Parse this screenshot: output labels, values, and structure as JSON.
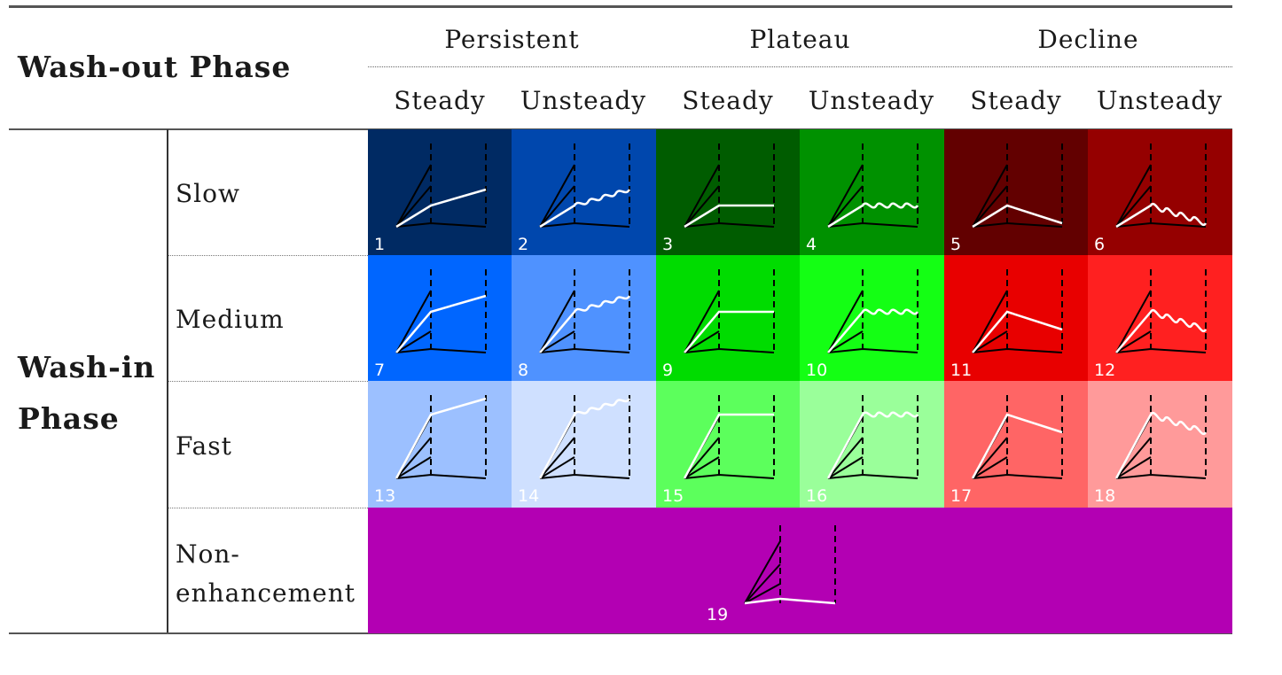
{
  "header": {
    "washout_title": "Wash-out Phase",
    "groups": [
      "Persistent",
      "Plateau",
      "Decline"
    ],
    "subgroups": [
      "Steady",
      "Unsteady",
      "Steady",
      "Unsteady",
      "Steady",
      "Unsteady"
    ]
  },
  "side": {
    "washin_title_line1": "Wash-in",
    "washin_title_line2": "Phase",
    "rows": [
      "Slow",
      "Medium",
      "Fast"
    ],
    "nonenh_line1": "Non-",
    "nonenh_line2": "enhancement"
  },
  "cells": [
    {
      "num": "1",
      "color": "#002a63",
      "rise": "slow",
      "wash": "persistent",
      "wavy": false
    },
    {
      "num": "2",
      "color": "#0047ad",
      "rise": "slow",
      "wash": "persistent",
      "wavy": true
    },
    {
      "num": "3",
      "color": "#005c00",
      "rise": "slow",
      "wash": "plateau",
      "wavy": false
    },
    {
      "num": "4",
      "color": "#009100",
      "rise": "slow",
      "wash": "plateau",
      "wavy": true
    },
    {
      "num": "5",
      "color": "#620000",
      "rise": "slow",
      "wash": "decline",
      "wavy": false
    },
    {
      "num": "6",
      "color": "#950000",
      "rise": "slow",
      "wash": "decline",
      "wavy": true
    },
    {
      "num": "7",
      "color": "#0066ff",
      "rise": "medium",
      "wash": "persistent",
      "wavy": false
    },
    {
      "num": "8",
      "color": "#4f92ff",
      "rise": "medium",
      "wash": "persistent",
      "wavy": true
    },
    {
      "num": "9",
      "color": "#00dc00",
      "rise": "medium",
      "wash": "plateau",
      "wavy": false
    },
    {
      "num": "10",
      "color": "#14ff14",
      "rise": "medium",
      "wash": "plateau",
      "wavy": true
    },
    {
      "num": "11",
      "color": "#e80000",
      "rise": "medium",
      "wash": "decline",
      "wavy": false
    },
    {
      "num": "12",
      "color": "#ff2020",
      "rise": "medium",
      "wash": "decline",
      "wavy": true
    },
    {
      "num": "13",
      "color": "#9cc0ff",
      "rise": "fast",
      "wash": "persistent",
      "wavy": false
    },
    {
      "num": "14",
      "color": "#cfe0ff",
      "rise": "fast",
      "wash": "persistent",
      "wavy": true
    },
    {
      "num": "15",
      "color": "#5cff5c",
      "rise": "fast",
      "wash": "plateau",
      "wavy": false
    },
    {
      "num": "16",
      "color": "#9aff9a",
      "rise": "fast",
      "wash": "plateau",
      "wavy": true
    },
    {
      "num": "17",
      "color": "#ff6565",
      "rise": "fast",
      "wash": "decline",
      "wavy": false
    },
    {
      "num": "18",
      "color": "#ff9a9a",
      "rise": "fast",
      "wash": "decline",
      "wavy": true
    }
  ],
  "nonenhancement": {
    "num": "19",
    "color": "#b300b3"
  }
}
